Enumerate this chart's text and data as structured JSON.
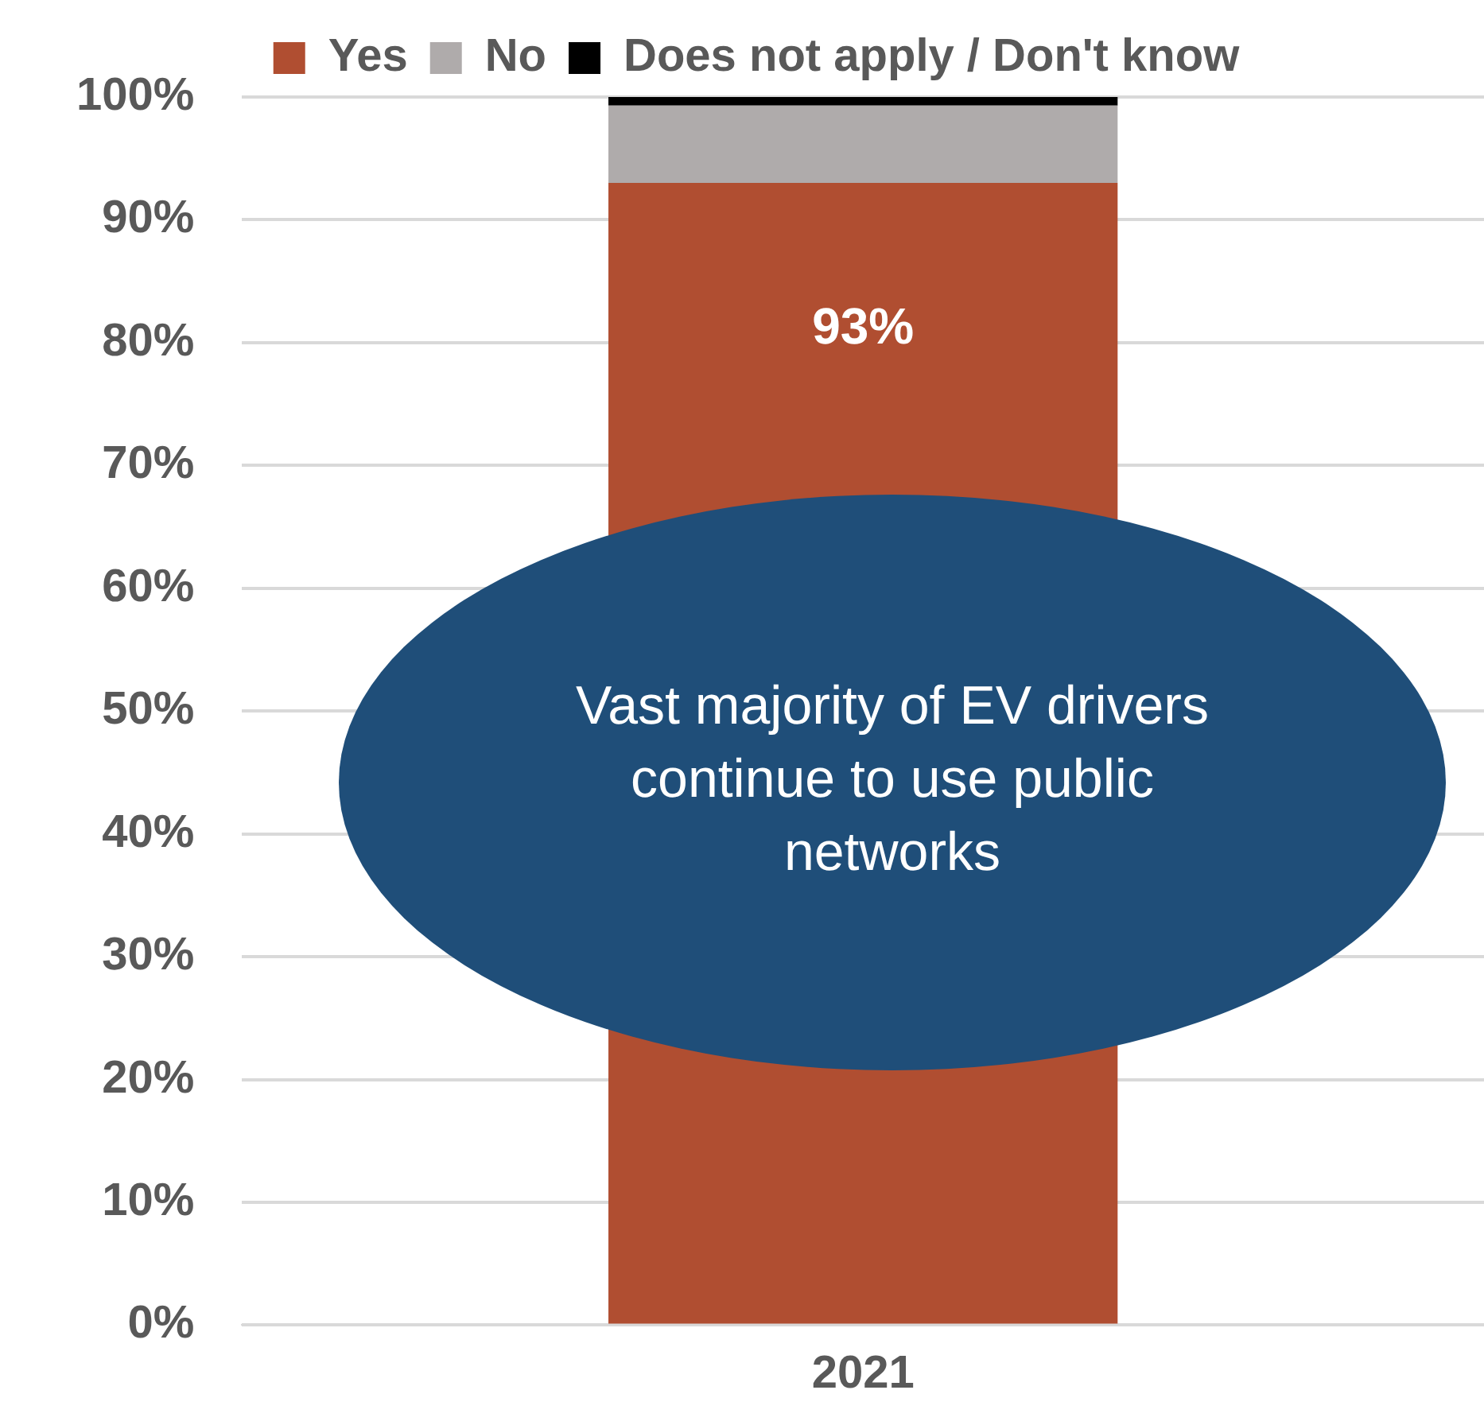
{
  "chart_data": {
    "type": "bar",
    "stacked": true,
    "categories": [
      "2021"
    ],
    "series": [
      {
        "name": "Yes",
        "color": "#b04e31",
        "values": [
          93
        ],
        "value_labels": [
          "93%"
        ]
      },
      {
        "name": "No",
        "color": "#afabab",
        "values": [
          6.3
        ]
      },
      {
        "name": "Does not apply / Don't know",
        "color": "#000000",
        "values": [
          0.7
        ]
      }
    ],
    "ylim": [
      0,
      100
    ],
    "yticks": [
      {
        "value": 0,
        "label": "0%"
      },
      {
        "value": 10,
        "label": "10%"
      },
      {
        "value": 20,
        "label": "20%"
      },
      {
        "value": 30,
        "label": "30%"
      },
      {
        "value": 40,
        "label": "40%"
      },
      {
        "value": 50,
        "label": "50%"
      },
      {
        "value": 60,
        "label": "60%"
      },
      {
        "value": 70,
        "label": "70%"
      },
      {
        "value": 80,
        "label": "80%"
      },
      {
        "value": 90,
        "label": "90%"
      },
      {
        "value": 100,
        "label": "100%"
      }
    ],
    "grid": "y",
    "legend": "top",
    "annotations": [
      "Vast majority of EV drivers continue to use public networks"
    ]
  }
}
